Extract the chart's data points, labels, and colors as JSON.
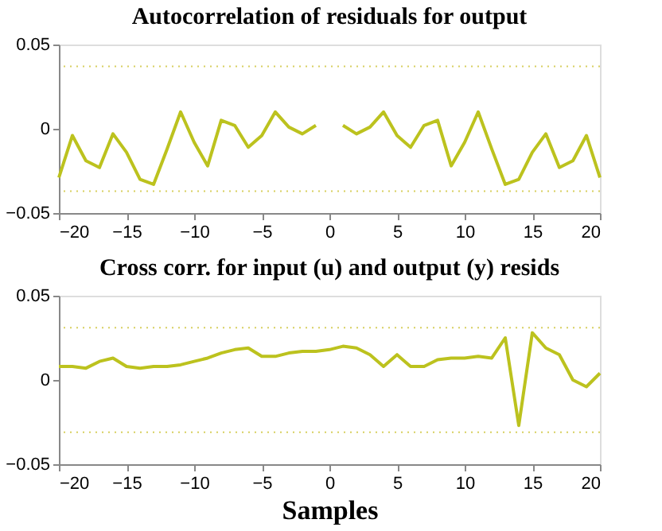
{
  "chart_data": [
    {
      "type": "line",
      "title": "Autocorrelation of residuals for output",
      "x": [
        -20,
        -19,
        -18,
        -17,
        -16,
        -15,
        -14,
        -13,
        -12,
        -11,
        -10,
        -9,
        -8,
        -7,
        -6,
        -5,
        -4,
        -3,
        -2,
        -1,
        0,
        1,
        2,
        3,
        4,
        5,
        6,
        7,
        8,
        9,
        10,
        11,
        12,
        13,
        14,
        15,
        16,
        17,
        18,
        19,
        20
      ],
      "series": [
        {
          "color": "#bcc21e",
          "values": [
            -0.029,
            -0.004,
            -0.019,
            -0.023,
            -0.003,
            -0.014,
            -0.03,
            -0.033,
            -0.012,
            0.01,
            -0.008,
            -0.022,
            0.005,
            0.002,
            -0.011,
            -0.004,
            0.01,
            0.001,
            -0.003,
            0.002,
            null,
            0.002,
            -0.003,
            0.001,
            0.01,
            -0.004,
            -0.011,
            0.002,
            0.005,
            -0.022,
            -0.008,
            0.01,
            -0.012,
            -0.033,
            -0.03,
            -0.014,
            -0.003,
            -0.023,
            -0.019,
            -0.004,
            -0.029
          ]
        }
      ],
      "xlim": [
        -20,
        20
      ],
      "xticks": [
        -20,
        -15,
        -10,
        -5,
        0,
        5,
        10,
        15,
        20
      ],
      "ylim": [
        -0.05,
        0.05
      ],
      "yticks": [
        -0.05,
        0,
        0.05
      ],
      "ref_lines": [
        {
          "axis": "y",
          "value": 0.037,
          "color": "#d8d060",
          "line_style": "dotted"
        },
        {
          "axis": "y",
          "value": -0.037,
          "color": "#d8d060",
          "line_style": "dotted"
        }
      ],
      "grid": false,
      "legend": false,
      "line_style": "solid",
      "marker": "none"
    },
    {
      "type": "line",
      "title": "Cross corr. for input (u) and output (y) resids",
      "xlabel": "Samples",
      "x": [
        -20,
        -19,
        -18,
        -17,
        -16,
        -15,
        -14,
        -13,
        -12,
        -11,
        -10,
        -9,
        -8,
        -7,
        -6,
        -5,
        -4,
        -3,
        -2,
        -1,
        0,
        1,
        2,
        3,
        4,
        5,
        6,
        7,
        8,
        9,
        10,
        11,
        12,
        13,
        14,
        15,
        16,
        17,
        18,
        19,
        20
      ],
      "series": [
        {
          "color": "#bcc21e",
          "values": [
            0.008,
            0.008,
            0.007,
            0.011,
            0.013,
            0.008,
            0.007,
            0.008,
            0.008,
            0.009,
            0.011,
            0.013,
            0.016,
            0.018,
            0.019,
            0.014,
            0.014,
            0.016,
            0.017,
            0.017,
            0.018,
            0.02,
            0.019,
            0.015,
            0.008,
            0.015,
            0.008,
            0.008,
            0.012,
            0.013,
            0.013,
            0.014,
            0.013,
            0.025,
            -0.027,
            0.028,
            0.019,
            0.015,
            0.0,
            -0.004,
            0.004
          ]
        }
      ],
      "xlim": [
        -20,
        20
      ],
      "xticks": [
        -20,
        -15,
        -10,
        -5,
        0,
        5,
        10,
        15,
        20
      ],
      "ylim": [
        -0.05,
        0.05
      ],
      "yticks": [
        -0.05,
        0,
        0.05
      ],
      "ref_lines": [
        {
          "axis": "y",
          "value": 0.031,
          "color": "#d8d060",
          "line_style": "dotted"
        },
        {
          "axis": "y",
          "value": -0.031,
          "color": "#d8d060",
          "line_style": "dotted"
        }
      ],
      "grid": false,
      "legend": false,
      "line_style": "solid",
      "marker": "none"
    }
  ]
}
